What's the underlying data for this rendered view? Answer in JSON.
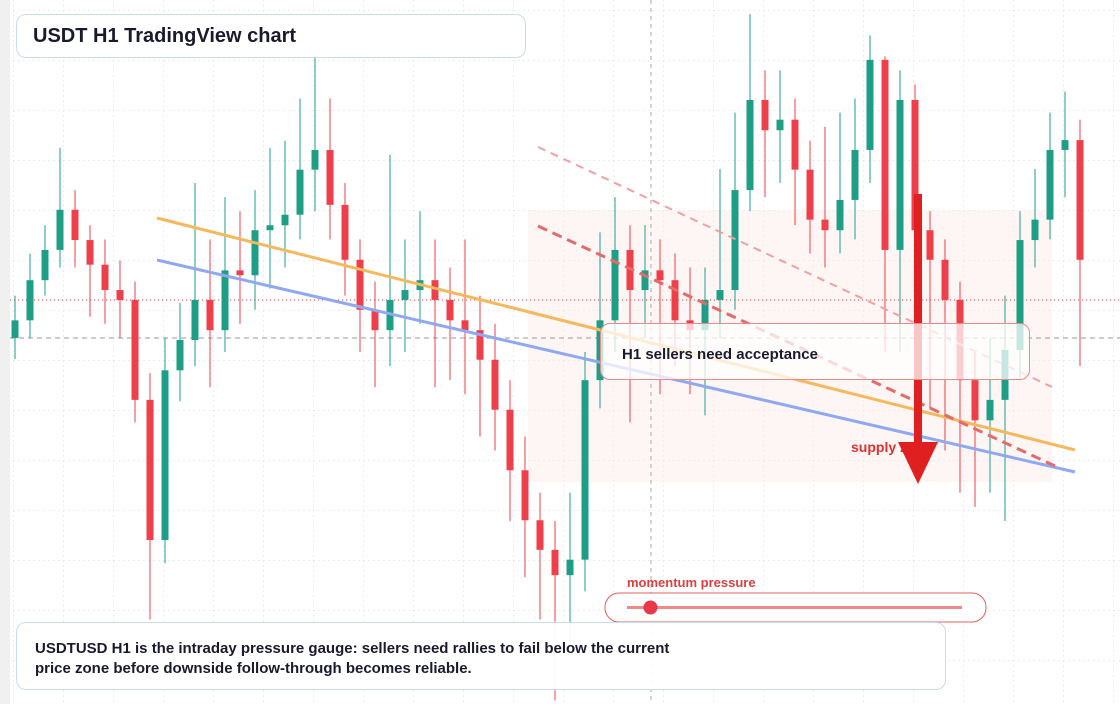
{
  "chart_data": {
    "type": "candlestick",
    "title": "USDT H1 TradingView chart",
    "ylim": [
      0,
      100
    ],
    "grid": true,
    "up_color": "#1f9e86",
    "down_color": "#ee3f4b",
    "open": [
      52.0,
      54.5,
      60.2,
      64.5,
      70.2,
      65.9,
      62.4,
      58.8,
      57.4,
      43.2,
      23.3,
      47.4,
      51.7,
      57.4,
      53.1,
      61.6,
      60.9,
      67.3,
      68.0,
      69.5,
      75.9,
      78.7,
      70.9,
      63.1,
      56.0,
      53.1,
      57.4,
      58.8,
      60.2,
      57.4,
      54.5,
      53.1,
      48.9,
      41.8,
      33.2,
      26.1,
      21.9,
      18.3,
      20.5,
      46.0,
      54.5,
      64.5,
      58.8,
      61.6,
      60.2,
      54.5,
      53.1,
      57.4,
      58.8,
      73.0,
      85.8,
      81.5,
      83.0,
      75.9,
      68.8,
      67.3,
      71.6,
      78.7,
      91.5,
      64.5,
      85.8,
      67.3,
      63.1,
      57.4,
      46.0,
      40.3,
      43.2,
      50.3,
      65.9,
      68.8,
      78.7,
      80.1
    ],
    "high": [
      58,
      64,
      68,
      79,
      73,
      68,
      66,
      63,
      60,
      47,
      52,
      57,
      74,
      66,
      72,
      70,
      73,
      79,
      80,
      86,
      92,
      86,
      74,
      66,
      60,
      78,
      66,
      70,
      66,
      62,
      66,
      58,
      54,
      46,
      38,
      30,
      26,
      30,
      50,
      67,
      72,
      68,
      68,
      66,
      64,
      62,
      62,
      76,
      84,
      98,
      90,
      90,
      86,
      80,
      82,
      84,
      86,
      95,
      92,
      90,
      88,
      70,
      66,
      60,
      50,
      52,
      58,
      70,
      76,
      84,
      87,
      83
    ],
    "low": [
      49,
      52,
      58,
      62,
      62,
      55,
      54,
      52,
      40,
      12,
      20,
      43,
      48,
      45,
      50,
      54,
      56,
      59,
      62,
      66,
      70,
      66,
      58,
      50,
      45,
      48,
      50,
      54,
      45,
      46,
      44,
      38,
      36,
      26,
      18,
      12,
      0.5,
      8,
      16,
      42,
      50,
      40,
      52,
      44,
      48,
      44,
      41,
      52,
      56,
      70,
      72,
      74,
      68,
      64,
      62,
      64,
      66,
      74,
      50,
      50,
      56,
      42,
      36,
      30,
      28,
      30,
      26,
      46,
      62,
      66,
      72,
      48
    ],
    "close": [
      54.5,
      60.2,
      64.5,
      70.2,
      65.9,
      62.4,
      58.8,
      57.4,
      43.2,
      23.3,
      47.4,
      51.7,
      57.4,
      53.1,
      61.6,
      60.9,
      67.3,
      68.0,
      69.5,
      75.9,
      78.7,
      70.9,
      63.1,
      56.0,
      53.1,
      57.4,
      58.8,
      60.2,
      57.4,
      54.5,
      53.1,
      48.9,
      41.8,
      33.2,
      26.1,
      21.9,
      18.3,
      20.5,
      46.0,
      54.5,
      64.5,
      58.8,
      61.6,
      60.2,
      54.5,
      53.1,
      57.4,
      58.8,
      73.0,
      85.8,
      81.5,
      83.0,
      75.9,
      68.8,
      67.3,
      71.6,
      78.7,
      91.5,
      64.5,
      85.8,
      67.3,
      63.1,
      57.4,
      46.0,
      40.3,
      43.2,
      50.3,
      65.9,
      68.8,
      78.7,
      80.1,
      63.1
    ],
    "callout": "H1 sellers need acceptance",
    "zone_label": "supply zone",
    "gauge": {
      "label": "momentum pressure",
      "value": 7,
      "lim": [
        0,
        100
      ]
    },
    "note": "USDTUSD H1 is the intraday pressure gauge: sellers need rallies to fail below the current price zone before downside follow-through becomes reliable."
  }
}
